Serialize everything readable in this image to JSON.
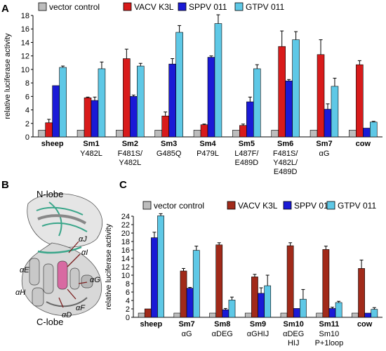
{
  "colors": {
    "vector_control": "#bdbdbd",
    "vacv_k3l_A": "#d81b1b",
    "sppv_011": "#1a1ad6",
    "gtpv_011": "#5ec8e6",
    "vacv_k3l_C": "#a12a1a"
  },
  "structure": {
    "panel_letter": "B",
    "n_lobe": "N-lobe",
    "c_lobe": "C-lobe",
    "helices": [
      "αJ",
      "αI",
      "αE",
      "αG",
      "αH",
      "αF",
      "αD"
    ]
  },
  "chart_data": [
    {
      "panel": "A",
      "type": "bar",
      "ylabel": "relative luciferase activity",
      "ylim": [
        0,
        18
      ],
      "yticks": [
        0,
        2,
        4,
        6,
        8,
        10,
        12,
        14,
        16,
        18
      ],
      "legend": [
        "vector control",
        "VACV K3L",
        "SPPV 011",
        "GTPV 011"
      ],
      "categories": [
        {
          "name": "sheep",
          "sub": []
        },
        {
          "name": "Sm1",
          "sub": [
            "Y482L"
          ]
        },
        {
          "name": "Sm2",
          "sub": [
            "F481S/",
            "Y482L"
          ]
        },
        {
          "name": "Sm3",
          "sub": [
            "G485Q"
          ]
        },
        {
          "name": "Sm4",
          "sub": [
            "P479L"
          ]
        },
        {
          "name": "Sm5",
          "sub": [
            "L487F/",
            "E489D"
          ]
        },
        {
          "name": "Sm6",
          "sub": [
            "F481S/",
            "Y482L/",
            "E489D"
          ]
        },
        {
          "name": "Sm7",
          "sub": [
            "αG"
          ]
        },
        {
          "name": "cow",
          "sub": []
        }
      ],
      "series": [
        {
          "name": "vector control",
          "values": [
            1,
            1,
            1,
            1,
            1,
            1,
            1,
            1,
            1
          ],
          "errors": [
            0,
            0,
            0,
            0,
            0,
            0,
            0,
            0,
            0
          ]
        },
        {
          "name": "VACV K3L",
          "values": [
            2.1,
            5.8,
            11.6,
            3.1,
            1.8,
            1.7,
            13.4,
            12.2,
            10.7
          ],
          "errors": [
            0.5,
            0.1,
            1.4,
            0.6,
            0.1,
            0.2,
            2.3,
            2.2,
            0.6
          ]
        },
        {
          "name": "SPPV 011",
          "values": [
            7.6,
            5.4,
            6.0,
            10.8,
            11.8,
            5.2,
            8.3,
            4.1,
            1.3
          ],
          "errors": [
            0,
            0.5,
            0.2,
            0.8,
            0.2,
            0.7,
            0.2,
            0.8,
            0
          ]
        },
        {
          "name": "GTPV 011",
          "values": [
            10.3,
            10.1,
            10.5,
            15.5,
            16.8,
            10.1,
            14.4,
            7.5,
            2.2
          ],
          "errors": [
            0.2,
            1.0,
            0.4,
            1.0,
            1.3,
            0.6,
            1.2,
            1.2,
            0.1
          ]
        }
      ]
    },
    {
      "panel": "C",
      "type": "bar",
      "ylabel": "relative luciferase activity",
      "ylim": [
        0,
        24
      ],
      "yticks": [
        0,
        2,
        4,
        6,
        8,
        10,
        12,
        14,
        16,
        18,
        20,
        22,
        24
      ],
      "legend": [
        "vector control",
        "VACV K3L",
        "SPPV 011",
        "GTPV 011"
      ],
      "categories": [
        {
          "name": "sheep",
          "sub": []
        },
        {
          "name": "Sm7",
          "sub": [
            "αG"
          ]
        },
        {
          "name": "Sm8",
          "sub": [
            "αDEG"
          ]
        },
        {
          "name": "Sm9",
          "sub": [
            "αGHIJ"
          ]
        },
        {
          "name": "Sm10",
          "sub": [
            "αDEG",
            "HIJ"
          ]
        },
        {
          "name": "Sm11",
          "sub": [
            "Sm10",
            "P+1loop"
          ]
        },
        {
          "name": "cow",
          "sub": []
        }
      ],
      "series": [
        {
          "name": "vector control",
          "values": [
            1,
            1,
            1,
            1,
            1,
            1,
            1
          ],
          "errors": [
            0,
            0,
            0,
            0,
            0,
            0,
            0
          ]
        },
        {
          "name": "VACV K3L",
          "values": [
            2.0,
            11.0,
            17.2,
            9.6,
            17.0,
            16.1,
            11.6
          ],
          "errors": [
            0,
            0.6,
            0.5,
            0.6,
            0.7,
            0.8,
            2.0
          ]
        },
        {
          "name": "SPPV 011",
          "values": [
            18.9,
            6.9,
            1.8,
            5.7,
            2.1,
            2.1,
            1.0
          ],
          "errors": [
            1.3,
            0.2,
            0.3,
            1.3,
            0,
            0.3,
            0
          ]
        },
        {
          "name": "GTPV 011",
          "values": [
            24.1,
            15.9,
            4.1,
            7.5,
            4.3,
            3.5,
            1.9
          ],
          "errors": [
            0.5,
            1.0,
            0.7,
            2.5,
            2.3,
            0.3,
            0.4
          ]
        }
      ]
    }
  ]
}
